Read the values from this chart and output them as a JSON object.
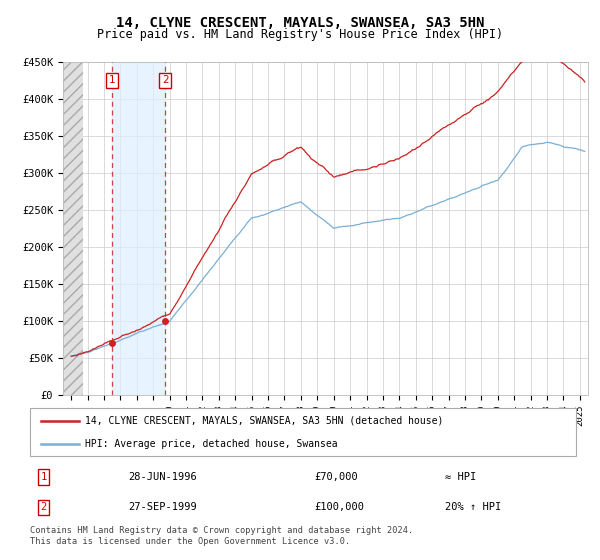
{
  "title": "14, CLYNE CRESCENT, MAYALS, SWANSEA, SA3 5HN",
  "subtitle": "Price paid vs. HM Land Registry's House Price Index (HPI)",
  "title_fontsize": 10,
  "subtitle_fontsize": 8.5,
  "yticks": [
    0,
    50000,
    100000,
    150000,
    200000,
    250000,
    300000,
    350000,
    400000,
    450000
  ],
  "ytick_labels": [
    "£0",
    "£50K",
    "£100K",
    "£150K",
    "£200K",
    "£250K",
    "£300K",
    "£350K",
    "£400K",
    "£450K"
  ],
  "xmin": 1993.5,
  "xmax": 2025.5,
  "ymin": 0,
  "ymax": 450000,
  "hatch_end": 1994.7,
  "sale1_x": 1996.49,
  "sale1_y": 70000,
  "sale2_x": 1999.74,
  "sale2_y": 100000,
  "hpi_color": "#7bafd4",
  "price_color": "#cc2222",
  "sale_marker_color": "#cc2222",
  "dashed_line_color": "#cc2222",
  "blue_span_color": "#ddeeff",
  "hatch_color": "#d8d8d8",
  "legend_label1": "14, CLYNE CRESCENT, MAYALS, SWANSEA, SA3 5HN (detached house)",
  "legend_label2": "HPI: Average price, detached house, Swansea",
  "footer": "Contains HM Land Registry data © Crown copyright and database right 2024.\nThis data is licensed under the Open Government Licence v3.0.",
  "table_row1": [
    "1",
    "28-JUN-1996",
    "£70,000",
    "≈ HPI"
  ],
  "table_row2": [
    "2",
    "27-SEP-1999",
    "£100,000",
    "20% ↑ HPI"
  ]
}
